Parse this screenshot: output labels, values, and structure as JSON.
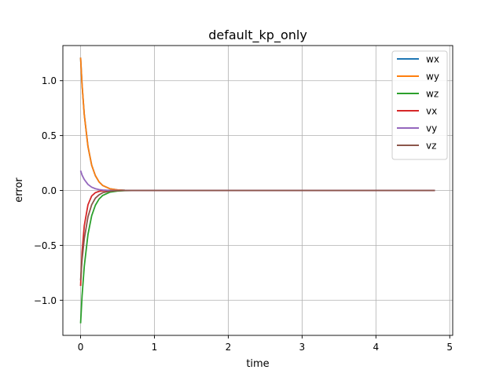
{
  "chart_data": {
    "type": "line",
    "title": "default_kp_only",
    "xlabel": "time",
    "ylabel": "error",
    "xlim": [
      -0.24,
      5.04
    ],
    "ylim": [
      -1.32,
      1.32
    ],
    "xticks": [
      0,
      1,
      2,
      3,
      4,
      5
    ],
    "xtick_labels": [
      "0",
      "1",
      "2",
      "3",
      "4",
      "5"
    ],
    "yticks": [
      -1.0,
      -0.5,
      0.0,
      0.5,
      1.0
    ],
    "ytick_labels": [
      "−1.0",
      "−0.5",
      "0.0",
      "0.5",
      "1.0"
    ],
    "grid": true,
    "legend_position": "top-right",
    "x": [
      0,
      0.02,
      0.05,
      0.1,
      0.15,
      0.2,
      0.25,
      0.3,
      0.4,
      0.5,
      0.6,
      0.8,
      1.0,
      1.5,
      2.0,
      3.0,
      4.0,
      4.8
    ],
    "series": [
      {
        "name": "wx",
        "color": "#1f77b4",
        "values": [
          1.21,
          0.96,
          0.69,
          0.4,
          0.23,
          0.135,
          0.078,
          0.045,
          0.015,
          0.005,
          0.002,
          0.0,
          0.0,
          0.0,
          0.0,
          0.0,
          0.0,
          0.0
        ]
      },
      {
        "name": "wy",
        "color": "#ff7f0e",
        "values": [
          1.21,
          0.96,
          0.69,
          0.4,
          0.23,
          0.135,
          0.078,
          0.045,
          0.015,
          0.005,
          0.002,
          0.0,
          0.0,
          0.0,
          0.0,
          0.0,
          0.0,
          0.0
        ]
      },
      {
        "name": "wz",
        "color": "#2ca02c",
        "values": [
          -1.21,
          -0.96,
          -0.69,
          -0.4,
          -0.23,
          -0.135,
          -0.078,
          -0.045,
          -0.015,
          -0.005,
          -0.002,
          0.0,
          0.0,
          0.0,
          0.0,
          0.0,
          0.0,
          0.0
        ]
      },
      {
        "name": "vx",
        "color": "#d62728",
        "values": [
          -0.87,
          -0.56,
          -0.32,
          -0.13,
          -0.05,
          -0.02,
          -0.008,
          -0.003,
          -0.001,
          0.0,
          0.0,
          0.0,
          0.0,
          0.0,
          0.0,
          0.0,
          0.0,
          0.0
        ]
      },
      {
        "name": "vy",
        "color": "#9467bd",
        "values": [
          0.18,
          0.14,
          0.1,
          0.055,
          0.03,
          0.016,
          0.008,
          0.004,
          0.001,
          0.0,
          0.0,
          0.0,
          0.0,
          0.0,
          0.0,
          0.0,
          0.0,
          0.0
        ]
      },
      {
        "name": "vz",
        "color": "#8c564b",
        "values": [
          -0.82,
          -0.63,
          -0.44,
          -0.24,
          -0.13,
          -0.07,
          -0.04,
          -0.02,
          -0.006,
          -0.002,
          0.0,
          0.0,
          0.0,
          0.0,
          0.0,
          0.0,
          0.0,
          0.0
        ]
      }
    ]
  }
}
